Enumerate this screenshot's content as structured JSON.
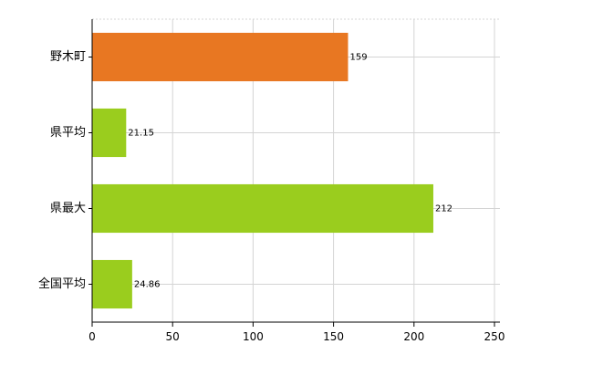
{
  "chart_data": {
    "type": "bar",
    "orientation": "horizontal",
    "categories": [
      "野木町",
      "県平均",
      "県最大",
      "全国平均"
    ],
    "values": [
      159,
      21.15,
      212,
      24.86
    ],
    "value_labels": [
      "159",
      "21.15",
      "212",
      "24.86"
    ],
    "bar_colors": [
      "#e87722",
      "#9acd1e",
      "#9acd1e",
      "#9acd1e"
    ],
    "xlim": [
      0,
      250
    ],
    "x_ticks": [
      0,
      50,
      100,
      150,
      200,
      250
    ],
    "x_tick_labels": [
      "0",
      "50",
      "100",
      "150",
      "200",
      "250"
    ],
    "grid": true,
    "legend": "none"
  }
}
